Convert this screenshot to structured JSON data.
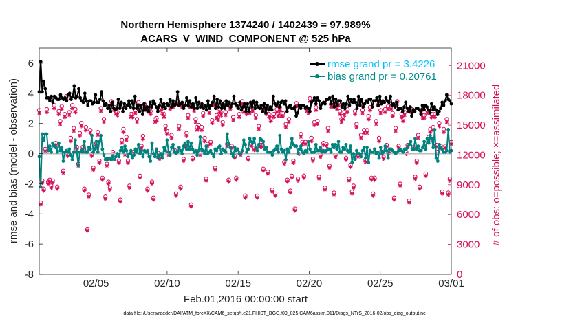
{
  "chart_data": {
    "type": "line",
    "title_line1": "Northern Hemisphere 1374240 / 1402439 = 97.989%",
    "title_line2": "ACARS_V_WIND_COMPONENT @ 525 hPa",
    "xlabel": "Feb.01,2016 00:00:00 start",
    "ylabel_left": "rmse and bias (model - observation)",
    "ylabel_right": "# of obs: o=possible; ×=assimilated",
    "footer": "data file: /Users/raeder/DAI/ATM_forcXX/CAM6_setup/f.e21.FHIST_BGC.f09_025.CAM6assim.011/Diags_NTrS_2016-02/obs_diag_output.nc",
    "xlim": [
      1,
      30
    ],
    "ylim_left": [
      -8,
      7
    ],
    "ylim_right": [
      0,
      22750
    ],
    "x_ticks": [
      5,
      10,
      15,
      20,
      25,
      30
    ],
    "x_tick_labels": [
      "02/05",
      "02/10",
      "02/15",
      "02/20",
      "02/25",
      "03/01"
    ],
    "y_left_ticks": [
      -8,
      -6,
      -4,
      -2,
      0,
      2,
      4,
      6
    ],
    "y_left_tick_labels": [
      "-8",
      "-6",
      "-4",
      "-2",
      "0",
      "2",
      "4",
      "6"
    ],
    "y_right_ticks": [
      0,
      3000,
      6000,
      9000,
      12000,
      15000,
      18000,
      21000
    ],
    "y_right_tick_labels": [
      "0",
      "3000",
      "6000",
      "9000",
      "12000",
      "15000",
      "18000",
      "21000"
    ],
    "zero_line": 0,
    "legend": [
      {
        "label": "rmse grand pr = 3.4226",
        "color": "#00bfff"
      },
      {
        "label": "bias grand pr = 0.20761",
        "color": "#008b8b"
      }
    ],
    "colors": {
      "rmse": "#000000",
      "bias": "#00827f",
      "obs": "#d6105a",
      "zero": "#bbbbbb"
    },
    "series": [
      {
        "name": "rmse",
        "axis": "left",
        "values": [
          4.1,
          6.1,
          4.1,
          4.8,
          4.3,
          3.7,
          3.7,
          3.5,
          3.8,
          3.4,
          3.8,
          3.7,
          3.6,
          3.6,
          3.9,
          3.7,
          3.6,
          3.7,
          3.5,
          3.9,
          4.0,
          3.6,
          3.8,
          4.5,
          3.7,
          3.8,
          4.3,
          3.7,
          3.5,
          3.4,
          4.0,
          3.5,
          3.2,
          3.5,
          3.5,
          3.3,
          3.4,
          3.9,
          3.4,
          3.4,
          3.6,
          4.1,
          3.5,
          3.2,
          3.3,
          3.0,
          3.2,
          2.8,
          3.4,
          3.0,
          2.9,
          3.0,
          3.6,
          3.0,
          3.4,
          2.8,
          3.3,
          3.0,
          3.2,
          3.5,
          3.1,
          3.5,
          3.0,
          3.8,
          3.0,
          3.2,
          2.8,
          3.2,
          2.6,
          3.3,
          2.9,
          3.1,
          2.8,
          3.4,
          3.1,
          3.5,
          3.3,
          3.1,
          2.8,
          3.2,
          3.6,
          3.1,
          3.3,
          3.0,
          3.3,
          3.2,
          3.6,
          3.1,
          3.5,
          3.2,
          3.3,
          4.1,
          3.2,
          3.3,
          3.4,
          3.0,
          3.2,
          3.7,
          3.2,
          3.5,
          3.1,
          3.3,
          3.0,
          3.7,
          3.0,
          3.4,
          3.1,
          3.3,
          3.0,
          3.2,
          2.9,
          3.5,
          3.0,
          3.2,
          3.4,
          3.8,
          3.0,
          3.6,
          3.1,
          3.5,
          3.0,
          3.3,
          3.0,
          3.5,
          3.2,
          3.4,
          3.1,
          3.3,
          3.8,
          3.3,
          3.2,
          3.0,
          3.4,
          2.9,
          3.1,
          3.3,
          2.8,
          3.3,
          2.8,
          3.4,
          3.1,
          3.5,
          3.0,
          3.4,
          3.1,
          3.0,
          3.2,
          2.8,
          3.3,
          2.7,
          3.2,
          2.9,
          3.1,
          2.9,
          3.8,
          3.3,
          3.2,
          3.4,
          3.1,
          3.4,
          3.5,
          3.3,
          3.5,
          2.8,
          3.1,
          3.2,
          3.0,
          3.0,
          3.1,
          2.5,
          2.7,
          3.2,
          3.0,
          3.2,
          3.2,
          3.0,
          3.1,
          3.0,
          2.8,
          3.4,
          3.5,
          3.7,
          3.3,
          3.7,
          3.5,
          3.0,
          3.3,
          3.4,
          3.3,
          3.6,
          3.6,
          3.7,
          3.3,
          3.8,
          3.1,
          3.6,
          3.2,
          3.5,
          3.5,
          3.1,
          3.3,
          3.0,
          3.3,
          3.8,
          3.2,
          3.6,
          3.4,
          3.6,
          3.4,
          3.0,
          3.8,
          3.2,
          3.6,
          3.1,
          3.3,
          3.5,
          3.4,
          3.6,
          3.6,
          3.1,
          3.5,
          3.5,
          3.7,
          3.2,
          3.8,
          3.3,
          3.5,
          3.4,
          3.7,
          3.5,
          3.4,
          3.8,
          3.2,
          3.3,
          3.1,
          3.4,
          2.9,
          3.0,
          3.0,
          2.8,
          3.1,
          3.4,
          3.0,
          2.8,
          3.1,
          2.5,
          2.9,
          2.8,
          3.0,
          3.0,
          2.9,
          2.6,
          3.2,
          2.9,
          3.2,
          3.1,
          2.9,
          2.7,
          3.3,
          2.9,
          3.1,
          2.9,
          2.6,
          2.8,
          3.0,
          3.4,
          3.2,
          3.5,
          3.9,
          3.6,
          3.5,
          3.3
        ]
      },
      {
        "name": "bias",
        "axis": "left",
        "values": [
          -0.2,
          -2.2,
          1.3,
          0.9,
          1.3,
          1.3,
          0.2,
          0.5,
          0.1,
          0.7,
          0.5,
          0.4,
          0.1,
          0.7,
          0.2,
          0.4,
          -0.5,
          0.1,
          0.2,
          0.1,
          0.3,
          -0.1,
          -0.4,
          0.1,
          0.9,
          0.1,
          -0.8,
          0.1,
          0.2,
          0.1,
          0.8,
          0.1,
          0.1,
          0.4,
          0.3,
          1.2,
          0.1,
          0.3,
          0.8,
          0.1,
          0.8,
          1.2,
          0.3,
          -0.1,
          -0.4,
          -0.3,
          -0.4,
          -0.3,
          -0.4,
          -0.2,
          -0.4,
          -0.2,
          0.0,
          -0.2,
          0.2,
          0.4,
          0.1,
          0.5,
          0.2,
          -0.2,
          0.0,
          0.2,
          -0.3,
          -0.1,
          0.3,
          0.1,
          0.6,
          0.0,
          0.2,
          -0.2,
          0.2,
          0.1,
          0.2,
          -0.2,
          -0.5,
          0.7,
          0.0,
          -0.2,
          0.3,
          -0.3,
          -0.1,
          0.0,
          -0.3,
          0.4,
          0.2,
          0.9,
          0.1,
          -0.1,
          0.4,
          0.6,
          0.1,
          0.0,
          0.1,
          0.4,
          0.2,
          0.0,
          0.5,
          0.7,
          0.3,
          0.8,
          0.3,
          0.7,
          0.3,
          0.1,
          0.2,
          -0.1,
          0.2,
          1.1,
          0.3,
          0.2,
          0.0,
          0.5,
          0.0,
          0.1,
          0.2,
          0.0,
          -0.2,
          0.3,
          0.2,
          0.4,
          0.5,
          0.0,
          0.3,
          0.2,
          0.1,
          1.3,
          0.7,
          0.4,
          0.0,
          -0.2,
          0.4,
          0.2,
          0.3,
          0.0,
          0.0,
          0.2,
          0.9,
          0.6,
          0.1,
          0.3,
          1.0,
          0.8,
          0.7,
          1.0,
          0.4,
          0.2,
          0.6,
          1.0,
          0.9,
          0.8,
          0.3,
          0.4,
          0.1,
          0.1,
          0.1,
          -0.1,
          0.2,
          0.3,
          0.5,
          0.1,
          1.2,
          0.3,
          0.1,
          0.2,
          -0.4,
          0.3,
          0.1,
          0.4,
          1.0,
          0.6,
          0.5,
          0.5,
          0.0,
          0.3,
          0.5,
          0.1,
          0.0,
          0.2,
          0.1,
          0.8,
          0.3,
          0.1,
          0.1,
          0.1,
          0.6,
          0.2,
          0.2,
          0.4,
          0.1,
          0.2,
          0.1,
          0.2,
          0.3,
          0.3,
          0.1,
          0.6,
          0.4,
          0.6,
          0.3,
          0.8,
          0.1,
          0.1,
          0.4,
          0.3,
          0.6,
          0.2,
          0.1,
          0.5,
          -0.6,
          0.0,
          -0.4,
          0.2,
          0.0,
          0.0,
          -0.2,
          0.2,
          0.4,
          -0.3,
          0.4,
          -0.6,
          0.2,
          0.1,
          0.1,
          0.3,
          0.0,
          0.1,
          -0.3,
          0.4,
          0.0,
          0.1,
          0.5,
          0.2,
          -0.3,
          0.3,
          0.3,
          0.2,
          0.1,
          0.0,
          0.1,
          0.2,
          0.3,
          0.2,
          0.1,
          0.3,
          0.3,
          0.4,
          0.6,
          0.8,
          0.3,
          0.3,
          1.0,
          0.3,
          0.5,
          0.2,
          0.2,
          0.4,
          0.8,
          0.3,
          1.0,
          0.7,
          1.2,
          1.0,
          0.4,
          1.6,
          -0.3,
          -0.5,
          0.6,
          0.4,
          0.3,
          0.1,
          0.1,
          0.2,
          1.6,
          0.1,
          0.2
        ]
      },
      {
        "name": "possible",
        "axis": "right",
        "marker": "o",
        "values": [
          16500,
          7200,
          9400,
          8600,
          12600,
          16600,
          9300,
          9500,
          8900,
          9400,
          17000,
          13200,
          8800,
          16400,
          15400,
          16900,
          10400,
          16100,
          17900,
          12100,
          16300,
          13700,
          17000,
          14700,
          16600,
          12800,
          11100,
          14200,
          15200,
          12800,
          8600,
          14800,
          4500,
          8000,
          14500,
          12100,
          10700,
          12800,
          13200,
          14300,
          11400,
          16700,
          9700,
          15600,
          7800,
          11100,
          9300,
          8700,
          17400,
          12300,
          16800,
          16400,
          16300,
          11400,
          7500,
          13500,
          14600,
          12200,
          13800,
          11400,
          8900,
          16100,
          16100,
          12300,
          16500,
          15600,
          17300,
          9900,
          12900,
          13900,
          17100,
          16800,
          8600,
          16600,
          16400,
          9300,
          7700,
          15600,
          15700,
          12200,
          11800,
          16800,
          16400,
          16100,
          14900,
          14400,
          12200,
          16900,
          14000,
          17100,
          12500,
          8100,
          17400,
          14900,
          8800,
          17100,
          11600,
          13000,
          14200,
          16000,
          17100,
          7000,
          11700,
          16700,
          15600,
          14800,
          15000,
          12200,
          14800,
          16200,
          13700,
          9600,
          13100,
          16500,
          13300,
          15500,
          17300,
          10700,
          16000,
          15800,
          16600,
          16300,
          15300,
          17200,
          16300,
          13100,
          9500,
          16900,
          12900,
          15800,
          11900,
          9700,
          17100,
          16100,
          12200,
          17400,
          16600,
          7900,
          16400,
          11700,
          16500,
          13100,
          16700,
          12700,
          16000,
          7900,
          14900,
          13000,
          13000,
          10600,
          16900,
          16400,
          10300,
          16100,
          15700,
          8500,
          16100,
          8100,
          16600,
          16200,
          16800,
          16200,
          16200,
          11300,
          15100,
          9500,
          15600,
          8400,
          9900,
          11400,
          6600,
          17200,
          9600,
          12300,
          14100,
          13300,
          9900,
          13300,
          16700,
          16500,
          17700,
          13700,
          11600,
          15300,
          16800,
          15400,
          9800,
          12000,
          12400,
          13200,
          8700,
          13100,
          14700,
          10900,
          17100,
          17200,
          8200,
          12000,
          16900,
          17300,
          16400,
          15600,
          15900,
          16300,
          11700,
          16600,
          9600,
          11000,
          8300,
          8900,
          16400,
          15100,
          12000,
          17400,
          14000,
          16500,
          14500,
          11500,
          14500,
          15900,
          16800,
          9700,
          8100,
          9700,
          15400,
          17300,
          13700,
          16500,
          12300,
          11800,
          16600,
          13000,
          16900,
          12400,
          16900,
          16200,
          7700,
          14700,
          17400,
          12900,
          9100,
          16100,
          15700,
          16300,
          12300,
          13000,
          7400,
          16600,
          16600,
          12800,
          9800,
          11400,
          14000,
          8800,
          16500,
          16000,
          16000,
          10100,
          16500,
          13800,
          14600,
          16100,
          14800,
          16100,
          13000,
          12300,
          15200,
          12900,
          8300,
          14600,
          12900,
          15600,
          8200,
          9600,
          13300
        ]
      },
      {
        "name": "assimilated",
        "axis": "right",
        "marker": "*",
        "values": [
          16200,
          7000,
          9200,
          8400,
          12400,
          16300,
          9100,
          9300,
          8700,
          9200,
          16700,
          13000,
          8600,
          16100,
          15100,
          16600,
          10200,
          15800,
          17600,
          11900,
          16000,
          13400,
          16700,
          14400,
          16300,
          12600,
          10900,
          13900,
          14900,
          12600,
          8400,
          14500,
          4400,
          7800,
          14200,
          11900,
          10500,
          12600,
          13000,
          14000,
          11200,
          16400,
          9500,
          15300,
          7600,
          10900,
          9100,
          8500,
          17100,
          12100,
          16500,
          16100,
          16000,
          11200,
          7300,
          13200,
          14300,
          12000,
          13500,
          11200,
          8700,
          15800,
          15800,
          12100,
          16200,
          15300,
          17000,
          9700,
          12700,
          13600,
          16800,
          16500,
          8400,
          16300,
          16100,
          9100,
          7500,
          15300,
          15400,
          12000,
          11600,
          16500,
          16100,
          15800,
          14600,
          14100,
          12000,
          16600,
          13700,
          16800,
          12300,
          7900,
          17100,
          14600,
          8600,
          16800,
          11400,
          12800,
          13900,
          15700,
          16800,
          6800,
          11500,
          16400,
          15300,
          14500,
          14700,
          12000,
          14500,
          15900,
          13400,
          9400,
          12900,
          16200,
          13100,
          15200,
          17000,
          10500,
          15700,
          15500,
          16300,
          16000,
          15000,
          16900,
          16000,
          12900,
          9300,
          16600,
          12700,
          15500,
          11700,
          9500,
          16800,
          15800,
          12000,
          17100,
          16300,
          7700,
          16100,
          11500,
          16200,
          12900,
          16400,
          12500,
          15700,
          7700,
          14600,
          12800,
          12800,
          10400,
          16600,
          16100,
          10100,
          15800,
          15400,
          8300,
          15800,
          7900,
          16300,
          15900,
          16500,
          15900,
          15900,
          11100,
          14800,
          9300,
          15300,
          8200,
          9700,
          11200,
          6400,
          16900,
          9400,
          12100,
          13800,
          13100,
          9700,
          13100,
          16400,
          16200,
          17400,
          13400,
          11400,
          15000,
          16500,
          15100,
          9600,
          11800,
          12200,
          13000,
          8500,
          12900,
          14400,
          10700,
          16800,
          16900,
          8000,
          11800,
          16600,
          17000,
          16100,
          15300,
          15600,
          16000,
          11500,
          16300,
          9400,
          10800,
          8100,
          8700,
          16100,
          14800,
          11800,
          17100,
          13700,
          16200,
          14200,
          11300,
          14200,
          15600,
          16500,
          9500,
          7900,
          9500,
          15100,
          17000,
          13400,
          16200,
          12100,
          11600,
          16300,
          12800,
          16600,
          12200,
          16600,
          15900,
          7500,
          14400,
          17100,
          12700,
          8900,
          15800,
          15400,
          16000,
          12100,
          12800,
          7200,
          16300,
          16300,
          12600,
          9600,
          11200,
          13700,
          8600,
          16200,
          15700,
          15700,
          9900,
          16200,
          13500,
          14300,
          15800,
          14500,
          15800,
          12800,
          12100,
          14900,
          12700,
          8100,
          14300,
          12700,
          15300,
          8000,
          9400,
          13100
        ]
      }
    ]
  }
}
